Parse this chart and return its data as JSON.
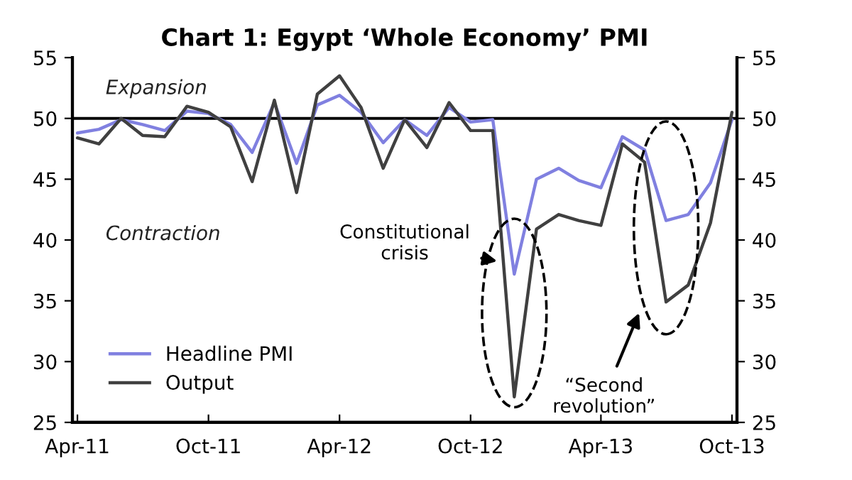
{
  "chart_data": {
    "type": "line",
    "title": "Chart 1: Egypt ‘Whole Economy’ PMI",
    "x": [
      "2011-04",
      "2011-05",
      "2011-06",
      "2011-07",
      "2011-08",
      "2011-09",
      "2011-10",
      "2011-11",
      "2011-12",
      "2012-01",
      "2012-02",
      "2012-03",
      "2012-04",
      "2012-05",
      "2012-06",
      "2012-07",
      "2012-08",
      "2012-09",
      "2012-10",
      "2012-11",
      "2012-12",
      "2013-01",
      "2013-02",
      "2013-03",
      "2013-04",
      "2013-05",
      "2013-06",
      "2013-07",
      "2013-08",
      "2013-09",
      "2013-10"
    ],
    "series": [
      {
        "name": "Headline PMI",
        "color": "#8080e0",
        "values": [
          48.8,
          49.1,
          49.9,
          49.5,
          49.0,
          50.6,
          50.4,
          49.5,
          47.2,
          51.3,
          46.3,
          51.1,
          51.9,
          50.5,
          48.0,
          49.9,
          48.6,
          50.9,
          49.7,
          49.9,
          37.2,
          45.0,
          45.9,
          44.9,
          44.3,
          48.5,
          47.4,
          41.6,
          42.1,
          44.7,
          49.9
        ]
      },
      {
        "name": "Output",
        "color": "#404040",
        "values": [
          48.4,
          47.9,
          50.0,
          48.6,
          48.5,
          51.0,
          50.5,
          49.3,
          44.8,
          51.5,
          43.9,
          52.0,
          53.5,
          50.9,
          45.9,
          49.9,
          47.6,
          51.3,
          49.0,
          49.0,
          27.1,
          40.9,
          42.1,
          41.6,
          41.2,
          47.9,
          46.4,
          34.9,
          36.3,
          41.4,
          50.5
        ]
      }
    ],
    "xlim": [
      "2011-03-25",
      "2013-10-08"
    ],
    "xticks": [
      {
        "value": "2011-04",
        "label": "Apr-11"
      },
      {
        "value": "2011-10",
        "label": "Oct-11"
      },
      {
        "value": "2012-04",
        "label": "Apr-12"
      },
      {
        "value": "2012-10",
        "label": "Oct-12"
      },
      {
        "value": "2013-04",
        "label": "Apr-13"
      },
      {
        "value": "2013-10",
        "label": "Oct-13"
      }
    ],
    "ylim": [
      25,
      55
    ],
    "yticks": [
      25,
      30,
      35,
      40,
      45,
      50,
      55
    ],
    "y2lim": [
      25,
      55
    ],
    "y2ticks": [
      25,
      30,
      35,
      40,
      45,
      50,
      55
    ],
    "ref_lines": [
      {
        "axis": "y",
        "value": 50,
        "color": "#000000"
      }
    ],
    "annotations": [
      "Expansion",
      "Contraction",
      "Constitutional\ncrisis",
      "“Second\nrevolution”"
    ],
    "legend": "lower left",
    "grid": false,
    "marker": "none",
    "line_style": "solid"
  }
}
